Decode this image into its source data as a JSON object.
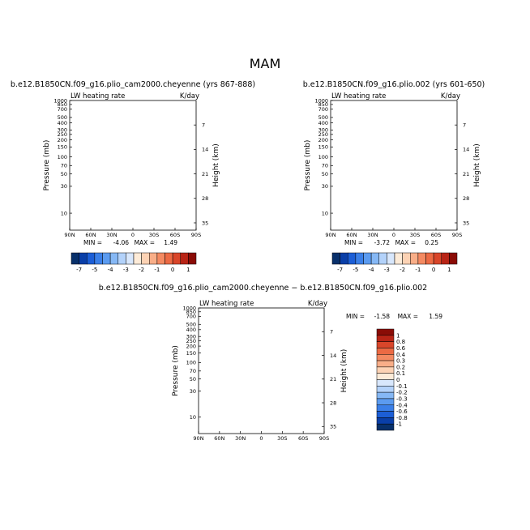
{
  "page_title": "MAM",
  "chart_data": [
    {
      "type": "heatmap",
      "title": "b.e12.B1850CN.f09_g16.plio_cam2000.cheyenne (yrs 867-888)",
      "left_label": "LW heating rate",
      "right_label": "K/day",
      "xlabel": "",
      "ylabel": "Pressure (mb)",
      "y2label": "Height (km)",
      "x_ticks": [
        "90N",
        "60N",
        "30N",
        "0",
        "30S",
        "60S",
        "90S"
      ],
      "y_ticks": [
        "10",
        "30",
        "50",
        "70",
        "100",
        "150",
        "200",
        "250",
        "300",
        "400",
        "500",
        "700",
        "850",
        "1000"
      ],
      "y2_ticks": [
        "35",
        "28",
        "21",
        "14",
        "7"
      ],
      "min_label": "MIN =",
      "min_value": "-4.06",
      "max_label": "MAX =",
      "max_value": "1.49",
      "ylim_mb": [
        1000,
        5
      ],
      "xlim": [
        90,
        -90
      ],
      "log_y": true
    },
    {
      "type": "heatmap",
      "title": "b.e12.B1850CN.f09_g16.plio.002 (yrs 601-650)",
      "left_label": "LW heating rate",
      "right_label": "K/day",
      "xlabel": "",
      "ylabel": "Pressure (mb)",
      "y2label": "Height (km)",
      "x_ticks": [
        "90N",
        "60N",
        "30N",
        "0",
        "30S",
        "60S",
        "90S"
      ],
      "y_ticks": [
        "10",
        "30",
        "50",
        "70",
        "100",
        "150",
        "200",
        "250",
        "300",
        "400",
        "500",
        "700",
        "850",
        "1000"
      ],
      "y2_ticks": [
        "35",
        "28",
        "21",
        "14",
        "7"
      ],
      "min_label": "MIN =",
      "min_value": "-3.72",
      "max_label": "MAX =",
      "max_value": "0.25",
      "ylim_mb": [
        1000,
        5
      ],
      "xlim": [
        90,
        -90
      ],
      "log_y": true
    },
    {
      "type": "heatmap",
      "title": "b.e12.B1850CN.f09_g16.plio_cam2000.cheyenne − b.e12.B1850CN.f09_g16.plio.002",
      "left_label": "LW heating rate",
      "right_label": "K/day",
      "xlabel": "",
      "ylabel": "Pressure (mb)",
      "y2label": "Height (km)",
      "x_ticks": [
        "90N",
        "60N",
        "30N",
        "0",
        "30S",
        "60S",
        "90S"
      ],
      "y_ticks": [
        "10",
        "30",
        "50",
        "70",
        "100",
        "150",
        "200",
        "250",
        "300",
        "400",
        "500",
        "700",
        "850",
        "1000"
      ],
      "y2_ticks": [
        "35",
        "28",
        "21",
        "14",
        "7"
      ],
      "min_label": "MIN =",
      "min_value": "-1.58",
      "max_label": "MAX =",
      "max_value": "1.59",
      "ylim_mb": [
        1000,
        5
      ],
      "xlim": [
        90,
        -90
      ],
      "log_y": true
    }
  ],
  "colorbars": {
    "abs": {
      "labels": [
        "-7",
        "-5",
        "-4",
        "-3",
        "-2",
        "-1",
        "0",
        "1"
      ],
      "colors": [
        "#08306b",
        "#0a3fa8",
        "#1c5ed6",
        "#3a7fe8",
        "#5b9bf0",
        "#86b8f5",
        "#b3d2fa",
        "#d8e7fc",
        "#fdebd8",
        "#fcd2b4",
        "#f9ae88",
        "#f48a62",
        "#ec6a44",
        "#d9462a",
        "#b82416",
        "#8a0c06"
      ]
    },
    "diff": {
      "labels": [
        "1",
        "0.8",
        "0.6",
        "0.4",
        "0.3",
        "0.2",
        "0.1",
        "0",
        "-0.1",
        "-0.2",
        "-0.3",
        "-0.4",
        "-0.6",
        "-0.8",
        "-1"
      ],
      "colors": [
        "#8a0c06",
        "#b82416",
        "#d9462a",
        "#ec6a44",
        "#f48a62",
        "#f9ae88",
        "#fcd2b4",
        "#fdebd8",
        "#d8e7fc",
        "#b3d2fa",
        "#86b8f5",
        "#5b9bf0",
        "#3a7fe8",
        "#1c5ed6",
        "#0a3fa8",
        "#08306b"
      ]
    }
  }
}
